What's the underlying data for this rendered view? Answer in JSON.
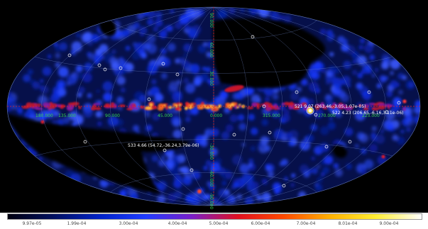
{
  "map": {
    "background": "#000000",
    "grid_color": "#6f86c8",
    "meridian_axis_color": "#e1241f",
    "label_color_green": "#36d14a",
    "label_color_white": "#ffffff",
    "longitude_labels": [
      "180.000",
      "135.000",
      "90.000",
      "45.000",
      "0.000",
      "315.000",
      "270.000",
      "225.000"
    ],
    "latitude_labels": [
      "90.000",
      "60.000",
      "30.000",
      "-30.000",
      "-60.000",
      "-90.000"
    ],
    "sources": [
      {
        "label": "521 9.07 (263.46,-3.05,1.07e-05)"
      },
      {
        "label": "522 4.23 (206.65,-6.16,3.11e-06)"
      },
      {
        "label": "533 4.66 (54.72,-36.24,3.79e-06)"
      }
    ]
  },
  "colorbar": {
    "colors": [
      "#00000f",
      "#001060",
      "#0022c8",
      "#1f3cff",
      "#7a1ec8",
      "#e01020",
      "#ff4a00",
      "#ffb000",
      "#ffee33",
      "#ffffff"
    ],
    "tick_labels": [
      "9.97e-05",
      "1.99e-04",
      "3.00e-04",
      "4.00e-04",
      "5.00e-04",
      "6.00e-04",
      "7.00e-04",
      "8.01e-04",
      "9.00e-04"
    ]
  }
}
